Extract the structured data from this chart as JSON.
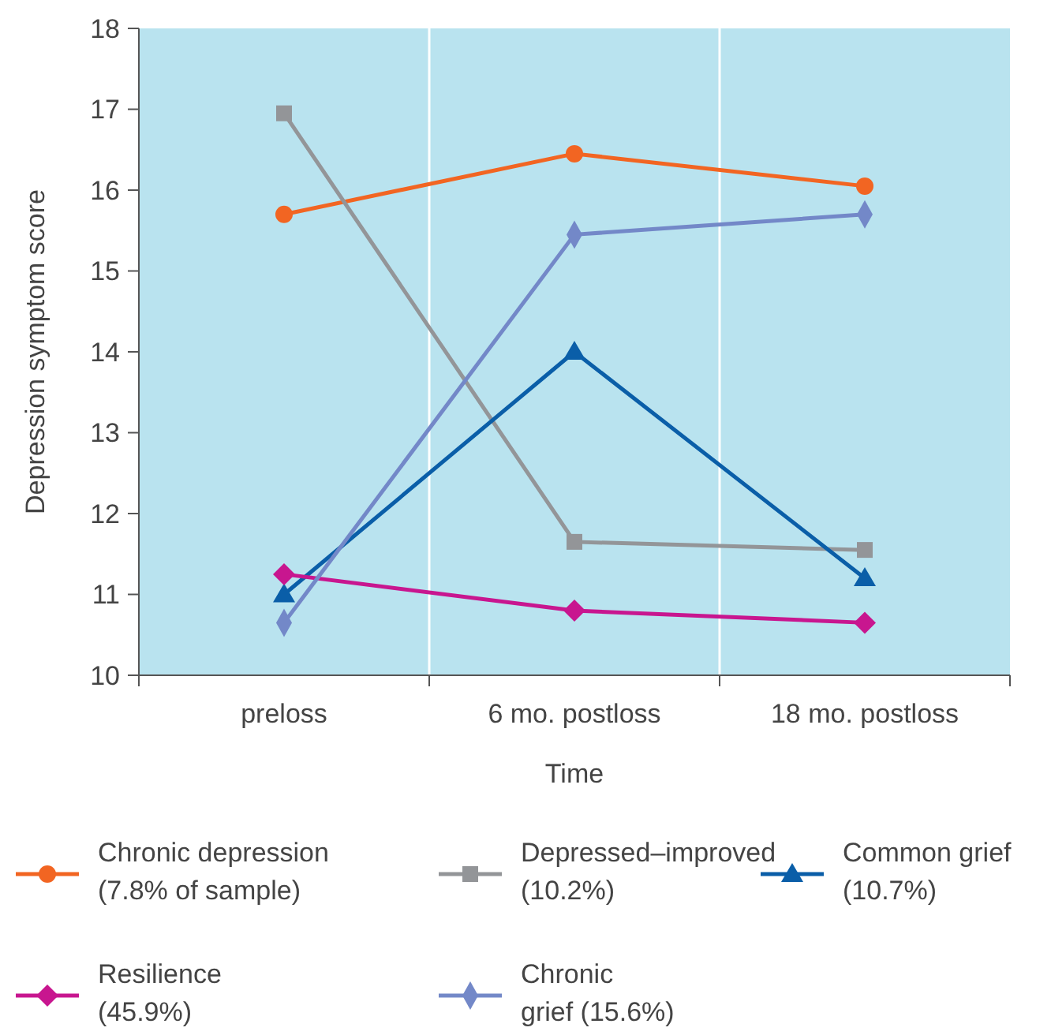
{
  "chart_data": {
    "type": "line",
    "xlabel": "Time",
    "ylabel": "Depression symptom score",
    "categories": [
      "preloss",
      "6 mo. postloss",
      "18 mo. postloss"
    ],
    "ylim": [
      10,
      18
    ],
    "yticks": [
      10,
      11,
      12,
      13,
      14,
      15,
      16,
      17,
      18
    ],
    "grid": "x",
    "legend": "bottom",
    "series": [
      {
        "name": "Chronic depression\n(7.8% of sample)",
        "color": "#f26522",
        "marker": "circle",
        "values": [
          15.7,
          16.45,
          16.05
        ]
      },
      {
        "name": "Depressed–improved\n(10.2%)",
        "color": "#939598",
        "marker": "square",
        "values": [
          16.95,
          11.65,
          11.55
        ]
      },
      {
        "name": "Common grief\n(10.7%)",
        "color": "#0a5ea8",
        "marker": "triangle",
        "values": [
          11.0,
          14.0,
          11.2
        ]
      },
      {
        "name": "Resilience\n(45.9%)",
        "color": "#c8168f",
        "marker": "diamond",
        "values": [
          11.25,
          10.8,
          10.65
        ]
      },
      {
        "name": "Chronic\ngrief (15.6%)",
        "color": "#7388c8",
        "marker": "diamond",
        "values": [
          10.65,
          15.45,
          15.7
        ]
      }
    ]
  }
}
